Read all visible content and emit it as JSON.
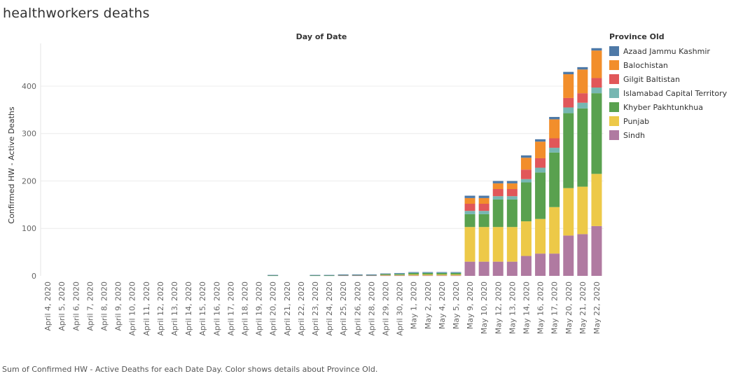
{
  "title": "healthworkers deaths",
  "column_header": "Day of Date",
  "caption": "Sum of Confirmed HW - Active Deaths for each Date Day.  Color shows details about Province Old.",
  "chart_data": {
    "type": "bar",
    "stacked": true,
    "title": "healthworkers deaths",
    "xlabel": "Day of Date",
    "ylabel": "Confirmed HW - Active Deaths",
    "ylim": [
      0,
      490
    ],
    "yticks": [
      0,
      100,
      200,
      300,
      400
    ],
    "grid": "horizontal",
    "legend": {
      "title": "Province Old",
      "position": "right"
    },
    "categories": [
      "April 4, 2020",
      "April 5, 2020",
      "April 6, 2020",
      "April 7, 2020",
      "April 8, 2020",
      "April 9, 2020",
      "April 10, 2020",
      "April 11, 2020",
      "April 12, 2020",
      "April 13, 2020",
      "April 14, 2020",
      "April 15, 2020",
      "April 16, 2020",
      "April 17, 2020",
      "April 18, 2020",
      "April 19, 2020",
      "April 20, 2020",
      "April 21, 2020",
      "April 22, 2020",
      "April 23, 2020",
      "April 24, 2020",
      "April 25, 2020",
      "April 26, 2020",
      "April 28, 2020",
      "April 29, 2020",
      "April 30, 2020",
      "May 1, 2020",
      "May 2, 2020",
      "May 4, 2020",
      "May 5, 2020",
      "May 9, 2020",
      "May 10, 2020",
      "May 12, 2020",
      "May 13, 2020",
      "May 14, 2020",
      "May 16, 2020",
      "May 17, 2020",
      "May 20, 2020",
      "May 21, 2020",
      "May 22, 2020"
    ],
    "series": [
      {
        "name": "Sindh",
        "color": "#b07aa1",
        "values": [
          0,
          0,
          0,
          0,
          0,
          0,
          0,
          0,
          0,
          0,
          0,
          0,
          0,
          0,
          0,
          0,
          0,
          0,
          0,
          0,
          0,
          1,
          1,
          1,
          1,
          1,
          1,
          1,
          1,
          1,
          30,
          30,
          30,
          30,
          42,
          47,
          47,
          85,
          88,
          105
        ]
      },
      {
        "name": "Punjab",
        "color": "#edc948",
        "values": [
          0,
          0,
          0,
          0,
          0,
          0,
          0,
          0,
          0,
          0,
          0,
          0,
          0,
          0,
          0,
          0,
          0,
          0,
          0,
          0,
          0,
          0,
          0,
          0,
          1,
          1,
          2,
          2,
          2,
          2,
          73,
          73,
          73,
          73,
          73,
          73,
          98,
          100,
          100,
          110
        ]
      },
      {
        "name": "Khyber Pakhtunkhua",
        "color": "#59a14f",
        "values": [
          0,
          0,
          0,
          0,
          0,
          0,
          0,
          0,
          0,
          0,
          0,
          0,
          0,
          0,
          0,
          0,
          1,
          0,
          0,
          1,
          1,
          1,
          1,
          1,
          2,
          2,
          3,
          3,
          3,
          3,
          27,
          27,
          58,
          58,
          82,
          98,
          115,
          158,
          165,
          170
        ]
      },
      {
        "name": "Islamabad Capital Territory",
        "color": "#76b7b2",
        "values": [
          0,
          0,
          0,
          0,
          0,
          0,
          0,
          0,
          0,
          0,
          0,
          0,
          0,
          0,
          0,
          0,
          0,
          0,
          0,
          0,
          0,
          0,
          0,
          0,
          0,
          1,
          1,
          1,
          1,
          1,
          7,
          7,
          7,
          7,
          7,
          10,
          10,
          12,
          12,
          12
        ]
      },
      {
        "name": "Gilgit Baltistan",
        "color": "#e15759",
        "values": [
          0,
          0,
          0,
          0,
          0,
          0,
          0,
          0,
          0,
          0,
          0,
          0,
          0,
          0,
          0,
          0,
          0,
          0,
          0,
          0,
          0,
          0,
          0,
          0,
          0,
          0,
          0,
          0,
          0,
          0,
          15,
          15,
          15,
          15,
          20,
          20,
          20,
          20,
          20,
          20
        ]
      },
      {
        "name": "Balochistan",
        "color": "#f28e2b",
        "values": [
          0,
          0,
          0,
          0,
          0,
          0,
          0,
          0,
          0,
          0,
          0,
          0,
          0,
          0,
          0,
          0,
          0,
          0,
          0,
          0,
          0,
          0,
          0,
          0,
          0,
          0,
          0,
          0,
          0,
          0,
          12,
          12,
          12,
          12,
          25,
          35,
          40,
          50,
          50,
          58
        ]
      },
      {
        "name": "Azaad Jammu Kashmir",
        "color": "#4e79a7",
        "values": [
          0,
          0,
          0,
          0,
          0,
          0,
          0,
          0,
          0,
          0,
          0,
          0,
          0,
          0,
          0,
          0,
          1,
          0,
          0,
          1,
          1,
          1,
          1,
          1,
          1,
          1,
          1,
          1,
          1,
          1,
          5,
          5,
          5,
          5,
          5,
          5,
          5,
          5,
          5,
          5
        ]
      }
    ],
    "legend_order": [
      "Azaad Jammu Kashmir",
      "Balochistan",
      "Gilgit Baltistan",
      "Islamabad Capital Territory",
      "Khyber Pakhtunkhua",
      "Punjab",
      "Sindh"
    ]
  }
}
